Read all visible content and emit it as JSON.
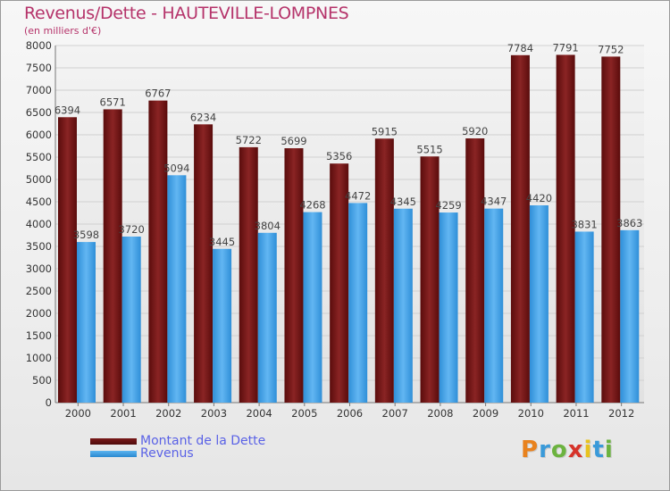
{
  "title": "Revenus/Dette - HAUTEVILLE-LOMPNES",
  "subtitle": "(en milliers d'€)",
  "colors": {
    "debt": "#6e1414",
    "revenue": "#3f9ee3",
    "title": "#b5336a",
    "legend_text": "#5a62e6"
  },
  "chart_data": {
    "type": "bar",
    "title": "Revenus/Dette - HAUTEVILLE-LOMPNES",
    "ylabel": "(en milliers d'€)",
    "xlabel": "",
    "ylim": [
      0,
      8000
    ],
    "yticks": [
      0,
      500,
      1000,
      1500,
      2000,
      2500,
      3000,
      3500,
      4000,
      4500,
      5000,
      5500,
      6000,
      6500,
      7000,
      7500,
      8000
    ],
    "grid": true,
    "legend_position": "bottom-left",
    "categories": [
      "2000",
      "2001",
      "2002",
      "2003",
      "2004",
      "2005",
      "2006",
      "2007",
      "2008",
      "2009",
      "2010",
      "2011",
      "2012"
    ],
    "series": [
      {
        "name": "Montant de la Dette",
        "values": [
          6394,
          6571,
          6767,
          6234,
          5722,
          5699,
          5356,
          5915,
          5515,
          5920,
          7784,
          7791,
          7752
        ]
      },
      {
        "name": "Revenus",
        "values": [
          3598,
          3720,
          5094,
          3445,
          3804,
          4268,
          4472,
          4345,
          4259,
          4347,
          4420,
          3831,
          3863
        ]
      }
    ]
  },
  "legend": {
    "items": [
      {
        "label": "Montant de la Dette"
      },
      {
        "label": "Revenus"
      }
    ]
  },
  "logo": {
    "letters": [
      "P",
      "r",
      "o",
      "x",
      "i",
      "t",
      "i"
    ],
    "colors": [
      "#e8821e",
      "#3a9ad9",
      "#6cb33f",
      "#d6332a",
      "#e8c21e",
      "#3a9ad9",
      "#6cb33f"
    ]
  }
}
